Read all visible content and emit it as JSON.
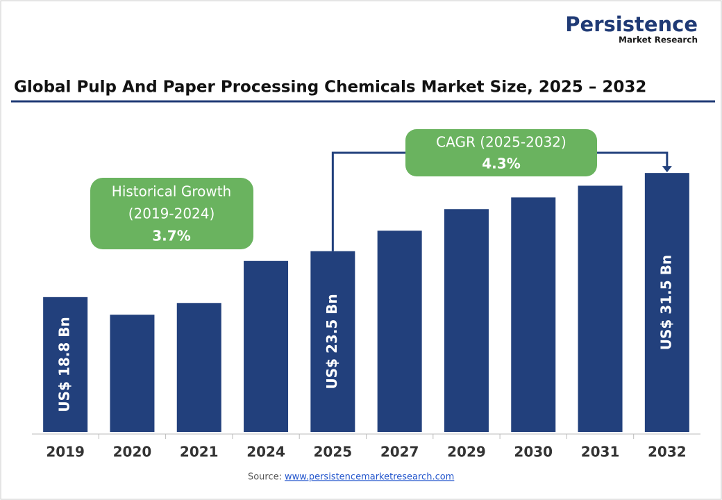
{
  "brand": {
    "name": "Persistence",
    "tagline": "Market Research"
  },
  "chart_data": {
    "type": "bar",
    "title": "Global Pulp And Paper Processing Chemicals Market Size, 2025 – 2032",
    "categories": [
      "2019",
      "2020",
      "2021",
      "2024",
      "2025",
      "2027",
      "2029",
      "2030",
      "2031",
      "2032"
    ],
    "values": [
      18.8,
      17.0,
      18.2,
      22.5,
      23.5,
      25.6,
      27.8,
      29.0,
      30.2,
      31.5
    ],
    "value_labels": [
      "US$ 18.8 Bn",
      null,
      null,
      null,
      "US$ 23.5 Bn",
      null,
      null,
      null,
      null,
      "US$ 31.5 Bn"
    ],
    "color": "#22407c",
    "ylim": [
      5,
      33.5
    ],
    "annotations": {
      "historical": {
        "label": "Historical Growth",
        "period": "(2019-2024)",
        "value": "3.7%"
      },
      "cagr": {
        "label": "CAGR (2025-2032)",
        "value": "4.3%"
      }
    },
    "source": {
      "label": "Source:",
      "link": "www.persistencemarketresearch.com"
    }
  }
}
